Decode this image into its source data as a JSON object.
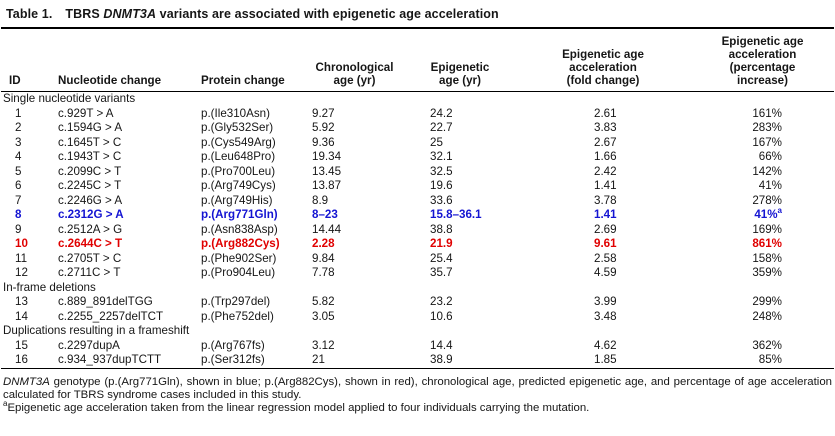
{
  "colors": {
    "highlight_blue": "#1414d2",
    "highlight_red": "#e00000",
    "text": "#161616",
    "rule": "#000000"
  },
  "title": {
    "label": "Table 1.",
    "prefix": "TBRS ",
    "gene": "DNMT3A",
    "suffix": " variants are associated with epigenetic age acceleration"
  },
  "columns": [
    "ID",
    "Nucleotide change",
    "Protein change",
    "Chronological\nage (yr)",
    "Epigenetic\nage (yr)",
    "Epigenetic age\nacceleration\n(fold change)",
    "Epigenetic age\nacceleration\n(percentage\nincrease)"
  ],
  "sections": [
    {
      "header": "Single nucleotide variants",
      "rows": [
        {
          "id": "1",
          "nt": "c.929T > A",
          "prot": "p.(Ile310Asn)",
          "chron": "9.27",
          "epi": "24.2",
          "fold": "2.61",
          "pct": "161%",
          "hl": "none"
        },
        {
          "id": "2",
          "nt": "c.1594G > A",
          "prot": "p.(Gly532Ser)",
          "chron": "5.92",
          "epi": "22.7",
          "fold": "3.83",
          "pct": "283%",
          "hl": "none"
        },
        {
          "id": "3",
          "nt": "c.1645T > C",
          "prot": "p.(Cys549Arg)",
          "chron": "9.36",
          "epi": "25",
          "fold": "2.67",
          "pct": "167%",
          "hl": "none"
        },
        {
          "id": "4",
          "nt": "c.1943T > C",
          "prot": "p.(Leu648Pro)",
          "chron": "19.34",
          "epi": "32.1",
          "fold": "1.66",
          "pct": "66%",
          "hl": "none"
        },
        {
          "id": "5",
          "nt": "c.2099C > T",
          "prot": "p.(Pro700Leu)",
          "chron": "13.45",
          "epi": "32.5",
          "fold": "2.42",
          "pct": "142%",
          "hl": "none"
        },
        {
          "id": "6",
          "nt": "c.2245C > T",
          "prot": "p.(Arg749Cys)",
          "chron": "13.87",
          "epi": "19.6",
          "fold": "1.41",
          "pct": "41%",
          "hl": "none"
        },
        {
          "id": "7",
          "nt": "c.2246G > A",
          "prot": "p.(Arg749His)",
          "chron": "8.9",
          "epi": "33.6",
          "fold": "3.78",
          "pct": "278%",
          "hl": "none"
        },
        {
          "id": "8",
          "nt": "c.2312G > A",
          "prot": "p.(Arg771Gln)",
          "chron": "8–23",
          "epi": "15.8–36.1",
          "fold": "1.41",
          "pct": "41%",
          "pct_sup": "a",
          "hl": "blue"
        },
        {
          "id": "9",
          "nt": "c.2512A > G",
          "prot": "p.(Asn838Asp)",
          "chron": "14.44",
          "epi": "38.8",
          "fold": "2.69",
          "pct": "169%",
          "hl": "none"
        },
        {
          "id": "10",
          "nt": "c.2644C > T",
          "prot": "p.(Arg882Cys)",
          "chron": "2.28",
          "epi": "21.9",
          "fold": "9.61",
          "pct": "861%",
          "hl": "red"
        },
        {
          "id": "11",
          "nt": "c.2705T > C",
          "prot": "p.(Phe902Ser)",
          "chron": "9.84",
          "epi": "25.4",
          "fold": "2.58",
          "pct": "158%",
          "hl": "none"
        },
        {
          "id": "12",
          "nt": "c.2711C > T",
          "prot": "p.(Pro904Leu)",
          "chron": "7.78",
          "epi": "35.7",
          "fold": "4.59",
          "pct": "359%",
          "hl": "none"
        }
      ]
    },
    {
      "header": "In-frame deletions",
      "rows": [
        {
          "id": "13",
          "nt": "c.889_891delTGG",
          "prot": "p.(Trp297del)",
          "chron": "5.82",
          "epi": "23.2",
          "fold": "3.99",
          "pct": "299%",
          "hl": "none"
        },
        {
          "id": "14",
          "nt": "c.2255_2257delTCT",
          "prot": "p.(Phe752del)",
          "chron": "3.05",
          "epi": "10.6",
          "fold": "3.48",
          "pct": "248%",
          "hl": "none"
        }
      ]
    },
    {
      "header": "Duplications resulting in a frameshift",
      "rows": [
        {
          "id": "15",
          "nt": "c.2297dupA",
          "prot": "p.(Arg767fs)",
          "chron": "3.12",
          "epi": "14.4",
          "fold": "4.62",
          "pct": "362%",
          "hl": "none"
        },
        {
          "id": "16",
          "nt": "c.934_937dupTCTT",
          "prot": "p.(Ser312fs)",
          "chron": "21",
          "epi": "38.9",
          "fold": "1.85",
          "pct": "85%",
          "hl": "none"
        }
      ]
    }
  ],
  "footnotes": {
    "gene": "DNMT3A",
    "note1_rest": " genotype (p.(Arg771Gln), shown in blue; p.(Arg882Cys), shown in red), chronological age, predicted epigenetic age, and percentage of age acceleration calculated for TBRS syndrome cases included in this study.",
    "note2_sup": "a",
    "note2": "Epigenetic age acceleration taken from the linear regression model applied to four individuals carrying the mutation."
  }
}
